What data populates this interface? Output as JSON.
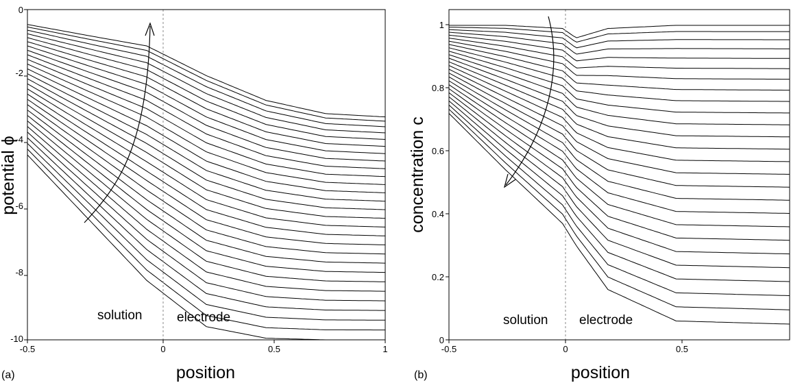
{
  "chart_data": [
    {
      "panel_label": "(a)",
      "type": "line",
      "xlabel": "position",
      "ylabel": "potential ϕ",
      "xlim": [
        -0.5,
        1
      ],
      "ylim": [
        -10,
        0
      ],
      "x_ticks": [
        "-0.5",
        "0",
        "0.5",
        "1"
      ],
      "y_ticks": [
        "0",
        "-2",
        "-4",
        "-6",
        "-8",
        "-10"
      ],
      "grid": false,
      "divider_x": 0,
      "region_labels": [
        "solution",
        "electrode"
      ],
      "arrow_direction": "upward, from bottom-left of the curve family",
      "family": {
        "count": 28,
        "x": [
          -0.5,
          -0.25,
          0,
          0.25,
          0.5,
          0.75,
          1
        ],
        "first_curve": [
          -0.45,
          -0.78,
          -1.1,
          -2.0,
          -2.75,
          -3.15,
          -3.25
        ],
        "last_curve": [
          -4.4,
          -6.3,
          -8.2,
          -9.6,
          -9.95,
          -10.0,
          -10.0
        ],
        "note": "family of smoothly decreasing potential profiles with a kink at position 0"
      }
    },
    {
      "panel_label": "(b)",
      "type": "line",
      "xlabel": "position",
      "ylabel": "concentration c",
      "xlim": [
        -0.5,
        1
      ],
      "ylim": [
        0,
        1.05
      ],
      "x_ticks": [
        "-0.5",
        "0",
        "0.5"
      ],
      "y_ticks": [
        "0",
        "0.2",
        "0.4",
        "0.6",
        "0.8",
        "1"
      ],
      "grid": false,
      "divider_x": 0,
      "region_labels": [
        "solution",
        "electrode"
      ],
      "arrow_direction": "downward-left, from top",
      "family": {
        "count": 26,
        "x": [
          -0.5,
          -0.25,
          0,
          0.06,
          0.2,
          0.5,
          1
        ],
        "first_curve": [
          1.0,
          1.0,
          0.99,
          0.96,
          0.99,
          1.0,
          1.0
        ],
        "last_curve": [
          0.72,
          0.54,
          0.37,
          0.3,
          0.16,
          0.06,
          0.05
        ],
        "note": "concentration profiles with a dip just inside the electrode that deepens and widens"
      }
    }
  ]
}
